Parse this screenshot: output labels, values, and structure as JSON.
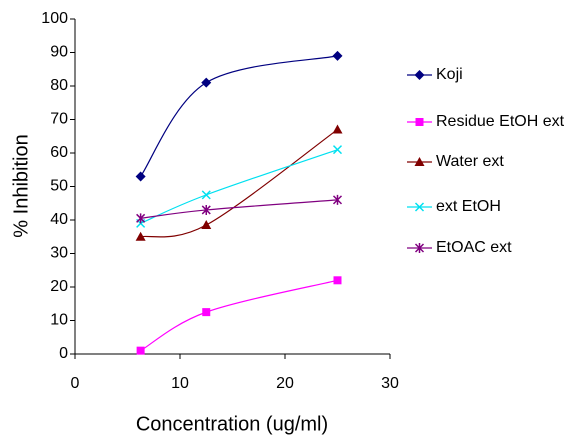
{
  "chart_data": {
    "type": "line",
    "smooth": true,
    "x_label": "Concentration (ug/ml)",
    "y_label": "% Inhibition",
    "x": [
      6.25,
      12.5,
      25
    ],
    "series": [
      {
        "name": "Koji",
        "color": "#000080",
        "marker": "diamond",
        "values": [
          53,
          81,
          89
        ]
      },
      {
        "name": "Residue EtOH ext",
        "color": "#ff00ff",
        "marker": "square",
        "values": [
          1,
          12.5,
          22
        ]
      },
      {
        "name": "Water ext",
        "color": "#800000",
        "marker": "triangle",
        "values": [
          35,
          38.5,
          67
        ]
      },
      {
        "name": "ext EtOH",
        "color": "#00e0f0",
        "marker": "x",
        "values": [
          39,
          47.5,
          61
        ]
      },
      {
        "name": "EtOAC ext",
        "color": "#800080",
        "marker": "star",
        "values": [
          40.5,
          43,
          46
        ]
      }
    ],
    "xlim": [
      0,
      30
    ],
    "xticks": [
      0,
      10,
      20,
      30
    ],
    "ylim": [
      0,
      100
    ],
    "yticks": [
      0,
      10,
      20,
      30,
      40,
      50,
      60,
      70,
      80,
      90,
      100
    ],
    "grid": false,
    "legend": "right"
  }
}
